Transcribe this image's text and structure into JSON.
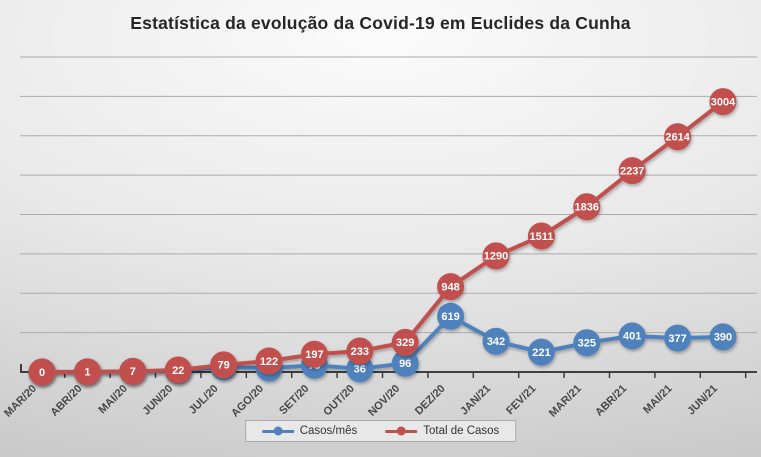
{
  "title": "Estatística da evolução da Covid-19 em Euclides da Cunha",
  "legend": {
    "position": "bottom",
    "items": [
      {
        "label": "Casos/mês",
        "color": "#4F81BD"
      },
      {
        "label": "Total de Casos",
        "color": "#C0504D"
      }
    ]
  },
  "chart_data": {
    "type": "line",
    "title": "Estatística da evolução da Covid-19 em Euclides da Cunha",
    "categories": [
      "MAR/20",
      "ABR/20",
      "MAI/20",
      "JUN/20",
      "JUL/20",
      "AGO/20",
      "SET/20",
      "OUT/20",
      "NOV/20",
      "DEZ/20",
      "JAN/21",
      "FEV/21",
      "MAR/21",
      "ABR/21",
      "MAI/21",
      "JUN/21"
    ],
    "series": [
      {
        "name": "Casos/mês",
        "color": "#4F81BD",
        "values": [
          0,
          1,
          6,
          15,
          57,
          43,
          75,
          36,
          96,
          619,
          342,
          221,
          325,
          401,
          377,
          390
        ]
      },
      {
        "name": "Total de Casos",
        "color": "#C0504D",
        "values": [
          0,
          1,
          7,
          22,
          79,
          122,
          197,
          233,
          329,
          948,
          1290,
          1511,
          1836,
          2237,
          2614,
          3004
        ]
      }
    ],
    "xlabel": "",
    "ylabel": "",
    "ylim": [
      0,
      3500
    ],
    "gridlines": 8,
    "grid": true,
    "y_axis_labels_visible": false,
    "data_labels": true,
    "legend_position": "bottom",
    "axis_color": "#3f3f3f",
    "gridline_color": "#ababab"
  }
}
